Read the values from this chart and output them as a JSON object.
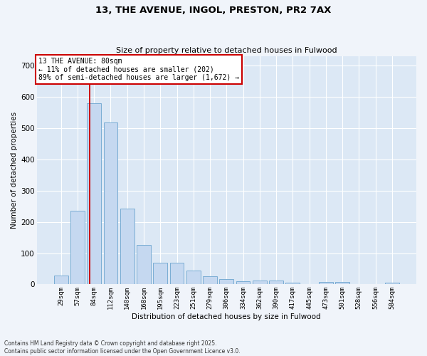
{
  "title1": "13, THE AVENUE, INGOL, PRESTON, PR2 7AX",
  "title2": "Size of property relative to detached houses in Fulwood",
  "xlabel": "Distribution of detached houses by size in Fulwood",
  "ylabel": "Number of detached properties",
  "categories": [
    "29sqm",
    "57sqm",
    "84sqm",
    "112sqm",
    "140sqm",
    "168sqm",
    "195sqm",
    "223sqm",
    "251sqm",
    "279sqm",
    "306sqm",
    "334sqm",
    "362sqm",
    "390sqm",
    "417sqm",
    "445sqm",
    "473sqm",
    "501sqm",
    "528sqm",
    "556sqm",
    "584sqm"
  ],
  "values": [
    28,
    235,
    580,
    518,
    243,
    126,
    70,
    70,
    45,
    27,
    17,
    11,
    12,
    12,
    6,
    0,
    8,
    8,
    0,
    0,
    5
  ],
  "bar_color": "#c5d8f0",
  "bar_edge_color": "#7aadd4",
  "bg_color": "#dce8f5",
  "fig_bg_color": "#f0f4fa",
  "grid_color": "#ffffff",
  "annotation_text": "13 THE AVENUE: 80sqm\n← 11% of detached houses are smaller (202)\n89% of semi-detached houses are larger (1,672) →",
  "vline_color": "#cc0000",
  "ylim": [
    0,
    730
  ],
  "yticks": [
    0,
    100,
    200,
    300,
    400,
    500,
    600,
    700
  ],
  "footnote1": "Contains HM Land Registry data © Crown copyright and database right 2025.",
  "footnote2": "Contains public sector information licensed under the Open Government Licence v3.0."
}
